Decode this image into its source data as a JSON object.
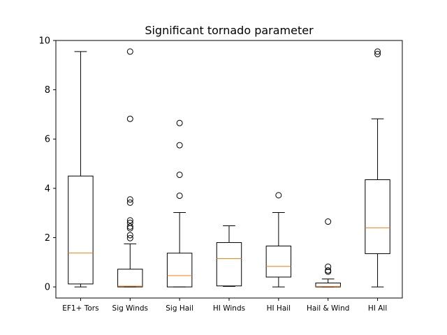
{
  "chart_data": {
    "type": "boxplot",
    "title": "Significant tornado parameter",
    "xlabel": "",
    "ylabel": "",
    "ylim": [
      -0.45,
      10
    ],
    "yticks": [
      0,
      2,
      4,
      6,
      8,
      10
    ],
    "grid": false,
    "categories": [
      "EF1+ Tors",
      "Sig Winds",
      "Sig Hail",
      "HI Winds",
      "HI Hail",
      "Hail & Wind",
      "HI All"
    ],
    "boxes": [
      {
        "whisker_low": 0.0,
        "q1": 0.12,
        "median": 1.38,
        "q3": 4.5,
        "whisker_high": 9.55,
        "outliers": []
      },
      {
        "whisker_low": 0.0,
        "q1": 0.0,
        "median": 0.03,
        "q3": 0.72,
        "whisker_high": 1.75,
        "outliers": [
          1.98,
          2.1,
          2.38,
          2.45,
          2.6,
          2.7,
          3.42,
          3.55,
          6.82,
          9.55
        ]
      },
      {
        "whisker_low": 0.0,
        "q1": 0.0,
        "median": 0.46,
        "q3": 1.37,
        "whisker_high": 3.02,
        "outliers": [
          3.7,
          4.55,
          5.75,
          6.65
        ]
      },
      {
        "whisker_low": 0.02,
        "q1": 0.04,
        "median": 1.15,
        "q3": 1.8,
        "whisker_high": 2.48,
        "outliers": []
      },
      {
        "whisker_low": 0.0,
        "q1": 0.4,
        "median": 0.83,
        "q3": 1.66,
        "whisker_high": 3.02,
        "outliers": [
          3.72
        ]
      },
      {
        "whisker_low": 0.0,
        "q1": 0.0,
        "median": 0.02,
        "q3": 0.16,
        "whisker_high": 0.32,
        "outliers": [
          0.62,
          0.67,
          0.82,
          2.65
        ]
      },
      {
        "whisker_low": 0.0,
        "q1": 1.35,
        "median": 2.4,
        "q3": 4.35,
        "whisker_high": 6.82,
        "outliers": [
          9.45,
          9.55
        ]
      }
    ],
    "colors": {
      "box": "#000000",
      "median": "#ff7f0e",
      "outlier_edge": "#000000"
    }
  }
}
